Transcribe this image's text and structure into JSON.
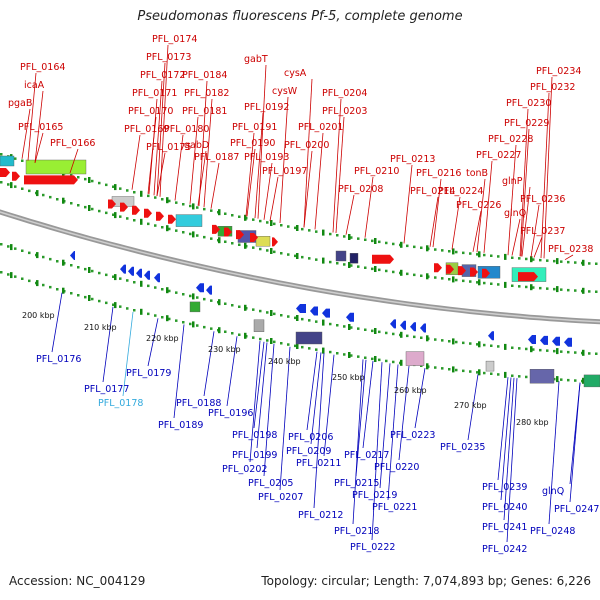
{
  "title": "Pseudomonas fluorescens Pf-5, complete genome",
  "footer": {
    "accession": "Accession: NC_004129",
    "summary": "Topology: circular; Length: 7,074,893 bp; Genes: 6,226"
  },
  "colors": {
    "forward_label": "#cc0000",
    "reverse_label": "#0000bb",
    "highlight_label": "#33aadd",
    "backbone": "#999999",
    "forward_arrow": "#ee1111",
    "reverse_arrow": "#1133dd"
  },
  "ticks": [
    "200 kbp",
    "210 kbp",
    "220 kbp",
    "230 kbp",
    "240 kbp",
    "250 kbp",
    "260 kbp",
    "270 kbp",
    "280 kbp"
  ],
  "forward_labels": [
    "PFL_0164",
    "icaA",
    "pgaB",
    "PFL_0165",
    "PFL_0166",
    "PFL_0174",
    "PFL_0173",
    "PFL_0172",
    "PFL_0171",
    "PFL_0170",
    "PFL_0169",
    "PFL_0175",
    "gabT",
    "PFL_0184",
    "PFL_0182",
    "PFL_0181",
    "PFL_0180",
    "gabD",
    "PFL_0187",
    "cysA",
    "cysW",
    "PFL_0192",
    "PFL_0191",
    "PFL_0190",
    "PFL_0193",
    "PFL_0197",
    "PFL_0204",
    "PFL_0203",
    "PFL_0201",
    "PFL_0200",
    "PFL_0208",
    "PFL_0210",
    "PFL_0213",
    "PFL_0216",
    "PFL_0214",
    "PFL_0234",
    "PFL_0232",
    "PFL_0230",
    "PFL_0229",
    "PFL_0228",
    "PFL_0227",
    "tonB",
    "PFL_0224",
    "PFL_0226",
    "glnP",
    "glnQ",
    "PFL_0236",
    "PFL_0237",
    "PFL_0238"
  ],
  "reverse_labels": [
    "PFL_0176",
    "PFL_0177",
    "PFL_0179",
    "PFL_0178",
    "PFL_0188",
    "PFL_0189",
    "PFL_0196",
    "PFL_0198",
    "PFL_0199",
    "PFL_0202",
    "PFL_0205",
    "PFL_0206",
    "PFL_0207",
    "PFL_0209",
    "PFL_0211",
    "PFL_0212",
    "PFL_0217",
    "PFL_0215",
    "PFL_0220",
    "PFL_0219",
    "PFL_0221",
    "PFL_0218",
    "PFL_0222",
    "PFL_0223",
    "PFL_0235",
    "PFL_0239",
    "PFL_0240",
    "PFL_0241",
    "PFL_0242",
    "glnQ",
    "PFL_0247",
    "PFL_0248"
  ]
}
